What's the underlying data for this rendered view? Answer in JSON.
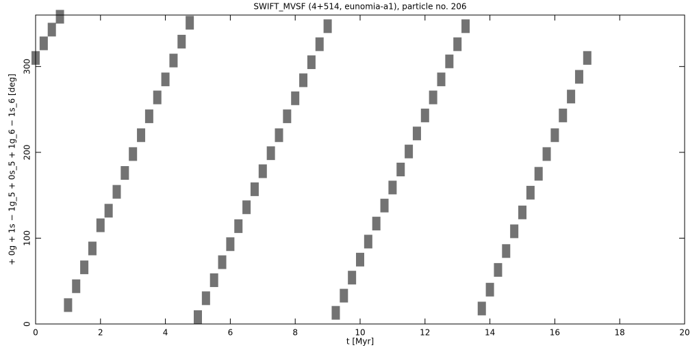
{
  "chart_data": {
    "type": "scatter",
    "title": "SWIFT_MVSF (4+514, eunomia-a1), particle no. 206",
    "x_label": "t [Myr]",
    "y_label": "+ 0g + 1s − 1g_5 + 0s_5 + 1g_6 − 1s_6 [deg]",
    "color": "#000000",
    "x": [
      0,
      0.25,
      0.5,
      0.75,
      1,
      1.25,
      1.5,
      1.75,
      2,
      2.25,
      2.5,
      2.75,
      3,
      3.25,
      3.5,
      3.75,
      4,
      4.25,
      4.5,
      4.75,
      5,
      5.25,
      5.5,
      5.75,
      6,
      6.25,
      6.5,
      6.75,
      7,
      7.25,
      7.5,
      7.75,
      8,
      8.25,
      8.5,
      8.75,
      9,
      9.25,
      9.5,
      9.75,
      10,
      10.25,
      10.5,
      10.75,
      11,
      11.25,
      11.5,
      11.75,
      12,
      12.25,
      12.5,
      12.75,
      13,
      13.25,
      13.75,
      14,
      14.25,
      14.5,
      14.75,
      15,
      15.25,
      15.5,
      15.75,
      16,
      16.25,
      16.5,
      16.75,
      17
    ],
    "values": [
      310,
      327,
      343,
      358,
      22,
      44,
      66,
      88,
      115,
      132,
      154,
      176,
      198,
      220,
      242,
      264,
      285,
      307,
      329,
      351,
      8,
      30,
      51,
      72,
      93,
      114,
      136,
      157,
      178,
      199,
      220,
      242,
      263,
      284,
      305,
      326,
      347,
      13,
      33,
      54,
      75,
      96,
      117,
      138,
      159,
      180,
      201,
      222,
      243,
      264,
      285,
      306,
      326,
      347,
      18,
      40,
      63,
      85,
      108,
      130,
      153,
      175,
      198,
      220,
      243,
      265,
      288,
      310
    ],
    "xlim": [
      0,
      20
    ],
    "ylim": [
      0,
      360
    ],
    "xticks": [
      0,
      2,
      4,
      6,
      8,
      10,
      12,
      14,
      16,
      18,
      20
    ],
    "yticks": [
      0,
      100,
      200,
      300
    ]
  }
}
